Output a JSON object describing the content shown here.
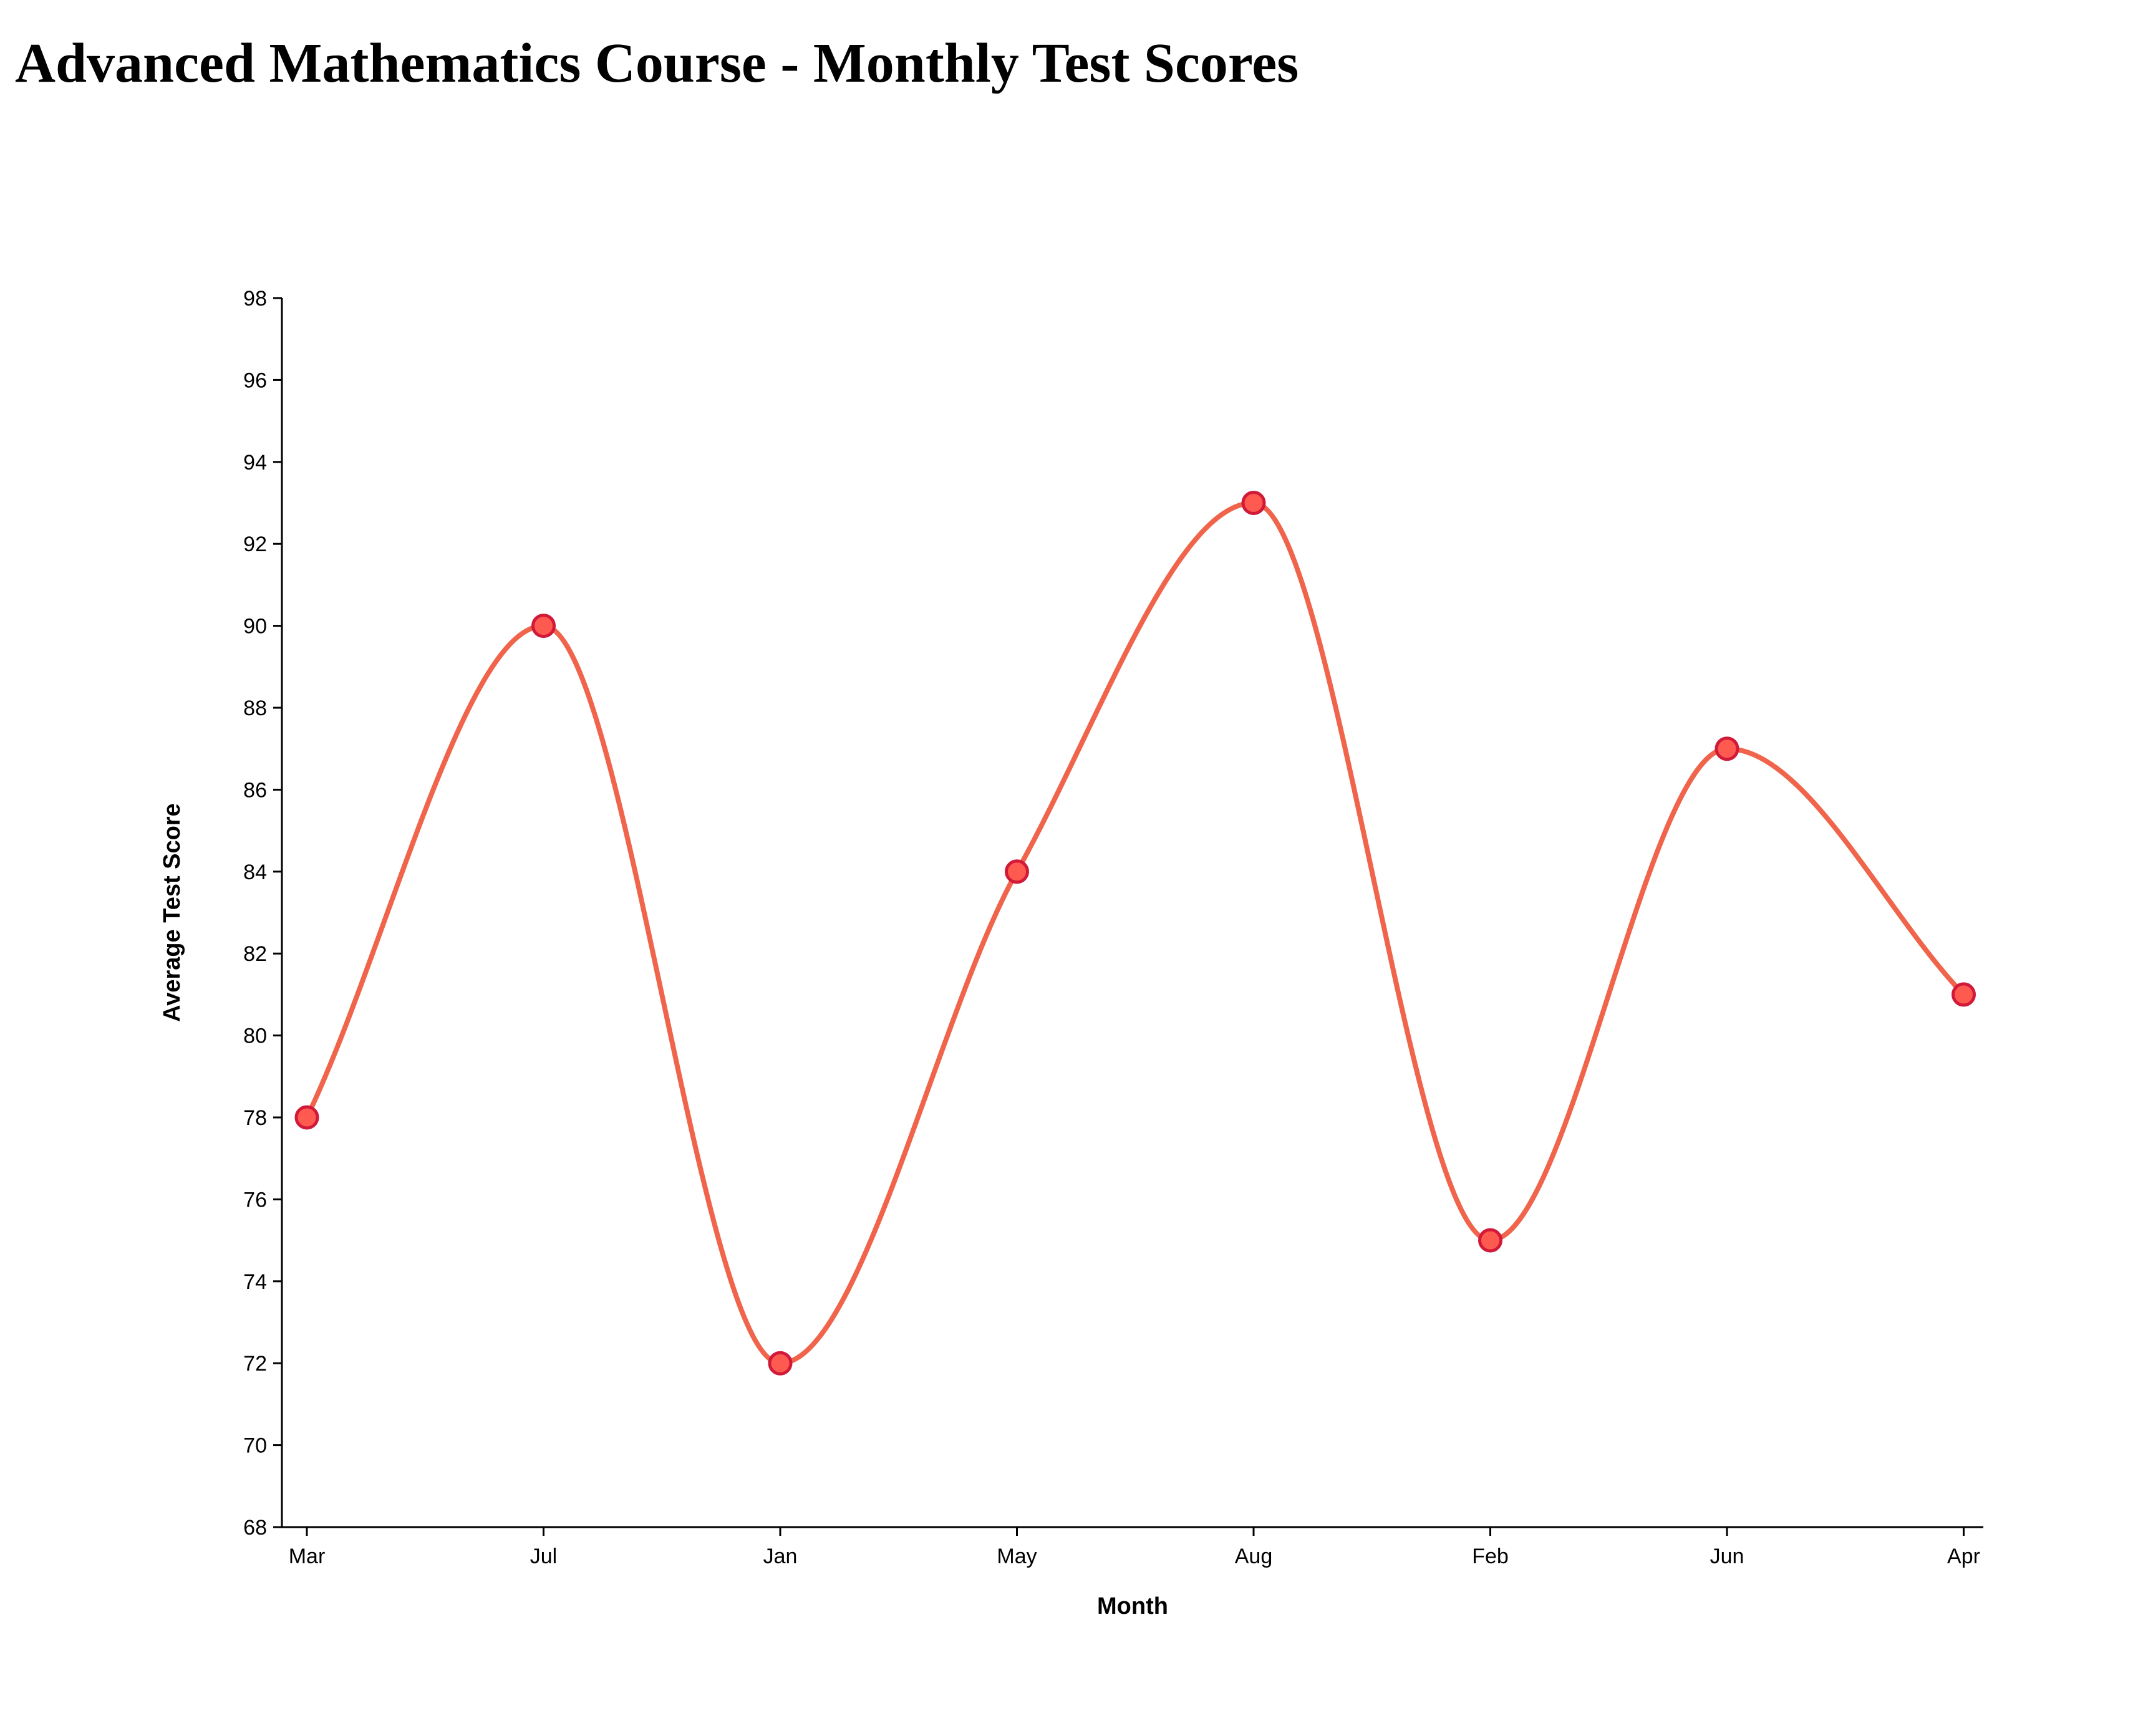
{
  "chart_data": {
    "type": "line",
    "title": "Advanced Mathematics Course - Monthly Test Scores",
    "xlabel": "Month",
    "ylabel": "Average Test Score",
    "categories": [
      "Mar",
      "Jul",
      "Jan",
      "May",
      "Aug",
      "Feb",
      "Jun",
      "Apr"
    ],
    "series": [
      {
        "values": [
          78,
          90,
          72,
          84,
          93,
          75,
          87,
          81
        ]
      }
    ],
    "ylim": [
      68,
      98
    ],
    "yticks": [
      68,
      70,
      72,
      74,
      76,
      78,
      80,
      82,
      84,
      86,
      88,
      90,
      92,
      94,
      96,
      98
    ],
    "grid": false,
    "line_color": "#f0644b",
    "point_fill": "#ff5a4f",
    "point_stroke": "#d11a3a",
    "curve": "smooth"
  }
}
